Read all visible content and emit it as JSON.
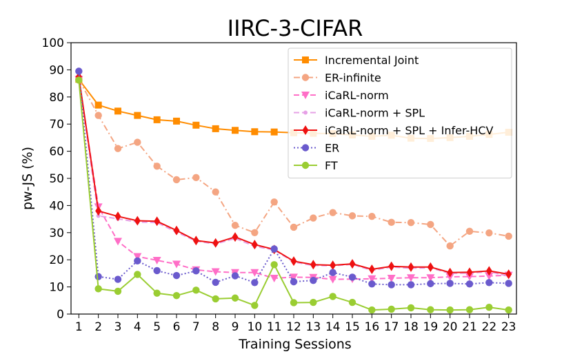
{
  "chart_data": {
    "type": "line",
    "title": "IIRC-3-CIFAR",
    "xlabel": "Training Sessions",
    "ylabel": "pw-JS (%)",
    "x": [
      1,
      2,
      3,
      4,
      5,
      6,
      7,
      8,
      9,
      10,
      11,
      12,
      13,
      14,
      15,
      16,
      17,
      18,
      19,
      20,
      21,
      22,
      23
    ],
    "xlim": [
      0.6,
      23.4
    ],
    "ylim": [
      0,
      100
    ],
    "yticks": [
      0,
      10,
      20,
      30,
      40,
      50,
      60,
      70,
      80,
      90,
      100
    ],
    "legend_position": "top-right",
    "grid": false,
    "series": [
      {
        "name": "Incremental Joint",
        "color": "#ff8c00",
        "linestyle": "solid",
        "marker": "square",
        "values": [
          86.5,
          77.0,
          74.8,
          73.2,
          71.6,
          71.1,
          69.6,
          68.3,
          67.7,
          67.2,
          67.1,
          66.8,
          66.6,
          66.5,
          66.0,
          65.5,
          65.9,
          64.8,
          64.7,
          65.0,
          65.5,
          66.2,
          67.0
        ]
      },
      {
        "name": "ER-infinite",
        "color": "#f4a582",
        "linestyle": "dashdot",
        "marker": "circle",
        "values": [
          86.5,
          73.2,
          61.0,
          63.3,
          54.5,
          49.5,
          50.3,
          45.0,
          32.7,
          30.0,
          41.3,
          32.0,
          35.4,
          37.4,
          36.2,
          36.0,
          33.8,
          33.7,
          33.0,
          25.1,
          30.5,
          29.9,
          28.7
        ]
      },
      {
        "name": "iCaRL-norm",
        "color": "#ff6ec7",
        "linestyle": "dashed",
        "marker": "triangle-down",
        "values": [
          86.5,
          39.5,
          26.8,
          21.2,
          19.8,
          18.4,
          16.3,
          15.6,
          15.3,
          15.3,
          13.2,
          13.6,
          13.5,
          12.8,
          12.9,
          13.0,
          13.2,
          13.4,
          13.4,
          13.7,
          13.8,
          14.0,
          14.3
        ]
      },
      {
        "name": "iCaRL-norm + SPL",
        "color": "#e6a0e6",
        "linestyle": "dashed",
        "marker": "point",
        "values": [
          86.5,
          36.2,
          35.1,
          33.9,
          33.7,
          30.2,
          26.9,
          25.8,
          27.9,
          25.0,
          23.6,
          19.2,
          17.9,
          17.8,
          18.3,
          16.1,
          17.3,
          16.9,
          17.0,
          15.0,
          15.1,
          15.6,
          14.0
        ]
      },
      {
        "name": "iCaRL-norm + SPL + Infer-HCV",
        "color": "#ee1111",
        "linestyle": "solid",
        "marker": "diamond",
        "values": [
          87.5,
          38.0,
          36.0,
          34.4,
          34.2,
          30.8,
          27.1,
          26.2,
          28.4,
          25.6,
          23.8,
          19.5,
          18.2,
          18.0,
          18.5,
          16.5,
          17.6,
          17.3,
          17.3,
          15.3,
          15.4,
          15.9,
          14.7
        ]
      },
      {
        "name": "ER",
        "color": "#6a5acd",
        "linestyle": "dotted",
        "marker": "circle",
        "values": [
          89.5,
          13.8,
          12.8,
          19.6,
          16.0,
          14.2,
          15.9,
          11.7,
          14.1,
          11.6,
          24.0,
          11.9,
          12.4,
          15.3,
          13.6,
          11.1,
          10.8,
          10.8,
          11.2,
          11.3,
          11.1,
          11.6,
          11.3
        ]
      },
      {
        "name": "FT",
        "color": "#9acd32",
        "linestyle": "solid",
        "marker": "circle",
        "values": [
          86.2,
          9.3,
          8.4,
          14.6,
          7.7,
          6.8,
          8.8,
          5.6,
          5.9,
          3.2,
          18.2,
          4.2,
          4.3,
          6.5,
          4.3,
          1.5,
          1.8,
          2.3,
          1.6,
          1.5,
          1.6,
          2.5,
          1.5
        ]
      }
    ]
  }
}
